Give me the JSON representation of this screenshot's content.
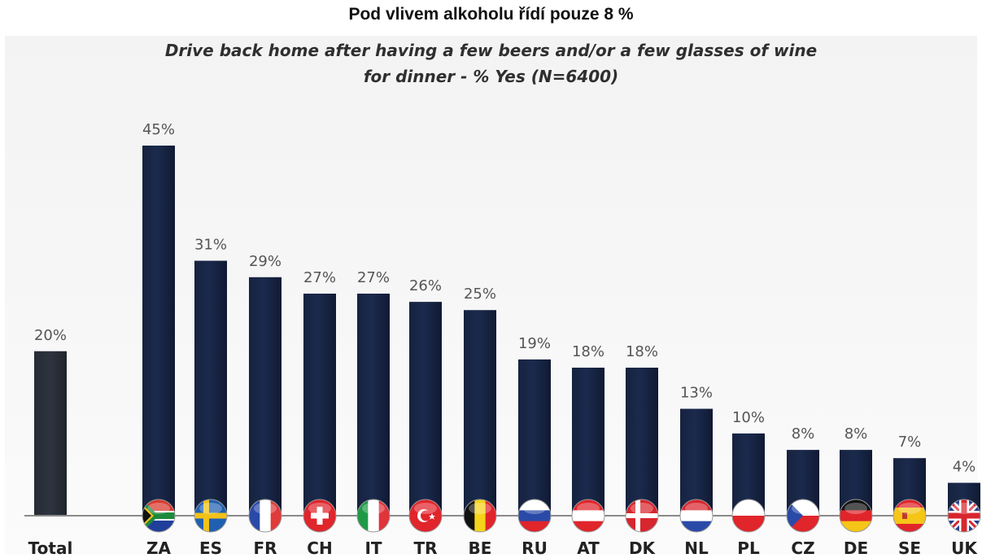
{
  "title": "Pod vlivem alkoholu řídí pouze 8 %",
  "subtitle_line1": "Drive back home after having a few beers and/or a few glasses of wine",
  "subtitle_line2": "for dinner -  % Yes (N=6400)",
  "colors": {
    "total_bar": "#2e343f",
    "country_bar": "#1b2a4d",
    "axis": "#8a8a8a"
  },
  "chart_data": {
    "type": "bar",
    "title": "Pod vlivem alkoholu řídí pouze 8 %",
    "subtitle": "Drive back home after having a few beers and/or a few glasses of wine for dinner -  % Yes (N=6400)",
    "categories": [
      "Total",
      "ZA",
      "ES",
      "FR",
      "CH",
      "IT",
      "TR",
      "BE",
      "RU",
      "AT",
      "DK",
      "NL",
      "PL",
      "CZ",
      "DE",
      "SE",
      "UK"
    ],
    "values": [
      20,
      45,
      31,
      29,
      27,
      27,
      26,
      25,
      19,
      18,
      18,
      13,
      10,
      8,
      8,
      7,
      4
    ],
    "value_labels": [
      "20%",
      "45%",
      "31%",
      "29%",
      "27%",
      "27%",
      "26%",
      "25%",
      "19%",
      "18%",
      "18%",
      "13%",
      "10%",
      "8%",
      "8%",
      "7%",
      "4%"
    ],
    "flags": [
      "",
      "south-africa-flag",
      "sweden-flag",
      "france-flag",
      "switzerland-flag",
      "italy-flag",
      "turkey-flag",
      "belgium-flag",
      "russia-flag",
      "austria-flag",
      "denmark-flag",
      "netherlands-flag",
      "poland-flag",
      "czech-flag",
      "germany-flag",
      "spain-flag",
      "uk-flag"
    ],
    "xlabel": "",
    "ylabel": "",
    "ylim": [
      0,
      45
    ],
    "grid": false,
    "legend": "none"
  }
}
